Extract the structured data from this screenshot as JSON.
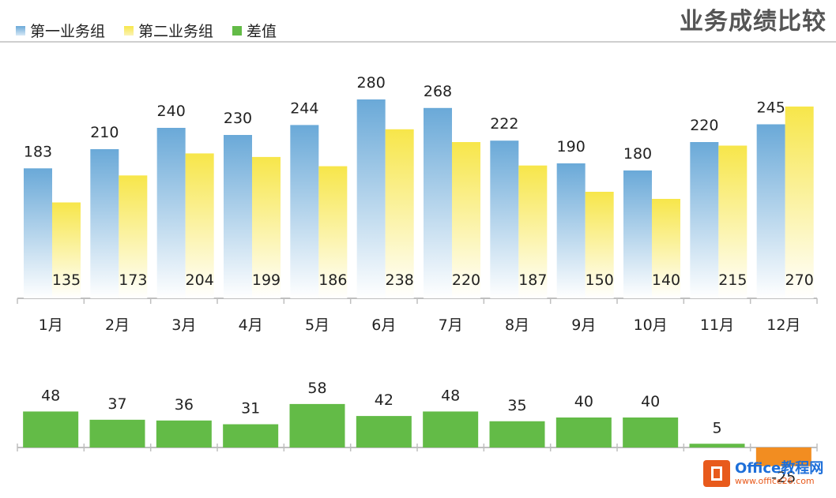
{
  "colors": {
    "series1_top": "#6aa9d8",
    "series2_top": "#f7e64a",
    "diff_positive": "#63bb47",
    "diff_negative": "#f28d21",
    "axis": "#bfbfbf",
    "text": "#222222",
    "title": "#555555"
  },
  "chart_data": {
    "type": "bar",
    "title": "业务成绩比较",
    "legend_position": "top-left",
    "categories": [
      "1月",
      "2月",
      "3月",
      "4月",
      "5月",
      "6月",
      "7月",
      "8月",
      "9月",
      "10月",
      "11月",
      "12月"
    ],
    "series": [
      {
        "name": "第一业务组",
        "values": [
          183,
          210,
          240,
          230,
          244,
          280,
          268,
          222,
          190,
          180,
          220,
          245
        ]
      },
      {
        "name": "第二业务组",
        "values": [
          135,
          173,
          204,
          199,
          186,
          238,
          220,
          187,
          150,
          140,
          215,
          270
        ]
      }
    ],
    "diff_series": {
      "name": "差值",
      "values": [
        48,
        37,
        36,
        31,
        58,
        42,
        48,
        35,
        40,
        40,
        5,
        -25
      ]
    }
  },
  "watermark": {
    "brand": "Office教程网",
    "url": "www.office26.com"
  }
}
